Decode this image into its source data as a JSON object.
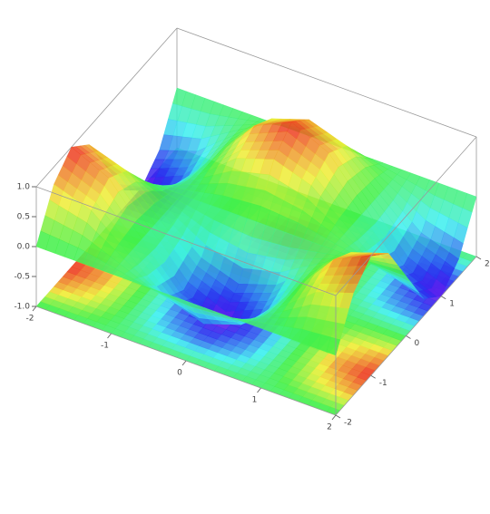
{
  "chart_data": {
    "type": "surface3d",
    "x": [
      -2,
      -1.5,
      -1,
      -0.5,
      0,
      0.5,
      1,
      1.5,
      2
    ],
    "y": [
      -2,
      -1.5,
      -1,
      -0.5,
      0,
      0.5,
      1,
      1.5,
      2
    ],
    "z": [
      [
        0,
        0.71,
        1,
        0.71,
        0,
        -0.71,
        -1,
        -0.71,
        0
      ],
      [
        0,
        0.5,
        0.71,
        0.5,
        0,
        -0.5,
        -0.71,
        -0.5,
        0
      ],
      [
        0,
        0,
        0,
        0,
        0,
        0,
        0,
        0,
        0
      ],
      [
        0,
        -0.5,
        -0.71,
        -0.5,
        0,
        0.5,
        0.71,
        0.5,
        0
      ],
      [
        0,
        -0.71,
        -1,
        -0.71,
        0,
        0.71,
        1,
        0.71,
        0
      ],
      [
        0,
        -0.5,
        -0.71,
        -0.5,
        0,
        0.5,
        0.71,
        0.5,
        0
      ],
      [
        0,
        0,
        0,
        0,
        0,
        0,
        0,
        0,
        0
      ],
      [
        0,
        0.5,
        0.71,
        0.5,
        0,
        -0.5,
        -0.71,
        -0.5,
        0
      ],
      [
        0,
        0.71,
        1,
        0.71,
        0,
        -0.71,
        -1,
        -0.71,
        0
      ]
    ],
    "xlim": [
      -2,
      2
    ],
    "ylim": [
      -2,
      2
    ],
    "zlim": [
      -1,
      1
    ],
    "xticks": [
      -2,
      -1,
      0,
      1,
      2
    ],
    "yticks": [
      -2,
      -1,
      0,
      1,
      2
    ],
    "zticks": [
      {
        "value": -1,
        "label": "-1.0"
      },
      {
        "value": -0.5,
        "label": "-0.5"
      },
      {
        "value": 0,
        "label": "0.0"
      },
      {
        "value": 0.5,
        "label": "0.5"
      },
      {
        "value": 1,
        "label": "1.0"
      }
    ],
    "colormap": "rainbow",
    "floor_projection": true
  }
}
